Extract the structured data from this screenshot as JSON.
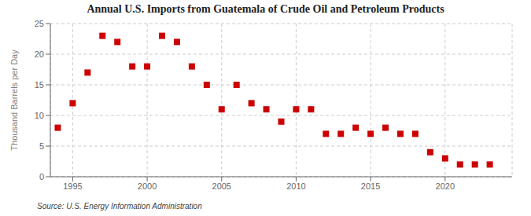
{
  "chart_data": {
    "type": "scatter",
    "title": "Annual U.S. Imports from Guatemala of Crude Oil and Petroleum Products",
    "y_label": "Thousand Barrels per Day",
    "source": "Source: U.S. Energy Information Administration",
    "x": [
      1994,
      1995,
      1996,
      1997,
      1998,
      1999,
      2000,
      2001,
      2002,
      2003,
      2004,
      2005,
      2006,
      2007,
      2008,
      2009,
      2010,
      2011,
      2012,
      2013,
      2014,
      2015,
      2016,
      2017,
      2018,
      2019,
      2020,
      2021,
      2022,
      2023
    ],
    "values": [
      8,
      12,
      17,
      23,
      22,
      18,
      18,
      23,
      22,
      18,
      15,
      11,
      15,
      12,
      11,
      9,
      11,
      11,
      7,
      7,
      8,
      7,
      8,
      7,
      7,
      4,
      3,
      2,
      2,
      2
    ],
    "color": "#cc0000",
    "marker": "square",
    "grid": true,
    "xlim": [
      1993.5,
      2024.5
    ],
    "xticks": [
      1995,
      2000,
      2005,
      2010,
      2015,
      2020
    ],
    "ylim": [
      0,
      25
    ],
    "yticks": [
      0,
      5,
      10,
      15,
      20,
      25
    ]
  }
}
